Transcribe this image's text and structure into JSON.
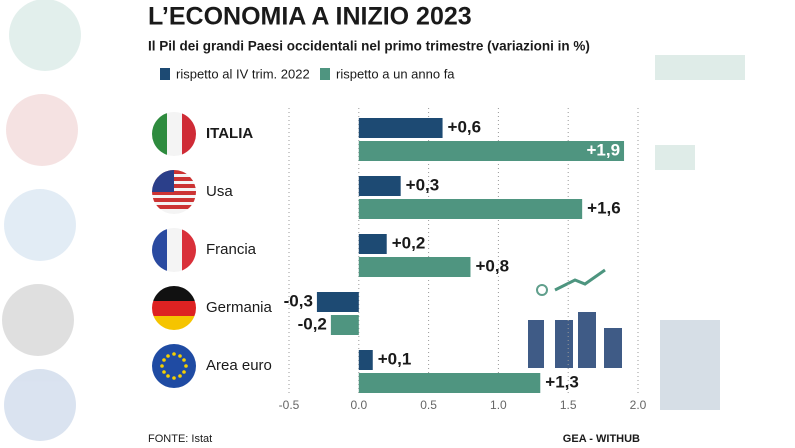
{
  "chart_data": {
    "type": "bar",
    "orientation": "horizontal",
    "title": "L’ECONOMIA A INIZIO 2023",
    "subtitle": "Il Pil dei grandi Paesi occidentali nel primo trimestre (variazioni in %)",
    "categories": [
      "ITALIA",
      "Usa",
      "Francia",
      "Germania",
      "Area euro"
    ],
    "series": [
      {
        "name": "rispetto al IV trim. 2022",
        "color": "#1d4a73",
        "values": [
          0.6,
          0.3,
          0.2,
          -0.3,
          0.1
        ],
        "value_labels": [
          "+0,6",
          "+0,3",
          "+0,2",
          "-0,3",
          "+0,1"
        ]
      },
      {
        "name": "rispetto a un anno fa",
        "color": "#4f9580",
        "values": [
          1.9,
          1.6,
          0.8,
          -0.2,
          1.3
        ],
        "value_labels": [
          "+1,9",
          "+1,6",
          "+0,8",
          "-0,2",
          "+1,3"
        ]
      }
    ],
    "xlim": [
      -0.5,
      2.0
    ],
    "xticks": [
      -0.5,
      {
        "value": 0,
        "label": "0.0"
      },
      0.5,
      {
        "value": 1,
        "label": "1.0"
      },
      1.5,
      {
        "value": 2,
        "label": "2.0"
      }
    ],
    "grid": true,
    "source": "FONTE: Istat",
    "credit": "GEA - WITHUB"
  }
}
